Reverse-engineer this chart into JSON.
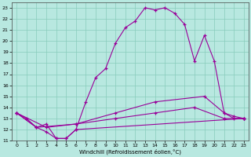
{
  "xlabel": "Windchill (Refroidissement éolien,°C)",
  "xlim": [
    -0.5,
    23.5
  ],
  "ylim": [
    11,
    23.5
  ],
  "xticks": [
    0,
    1,
    2,
    3,
    4,
    5,
    6,
    7,
    8,
    9,
    10,
    11,
    12,
    13,
    14,
    15,
    16,
    17,
    18,
    19,
    20,
    21,
    22,
    23
  ],
  "yticks": [
    11,
    12,
    13,
    14,
    15,
    16,
    17,
    18,
    19,
    20,
    21,
    22,
    23
  ],
  "bg_color": "#b8e8e0",
  "line_color": "#990099",
  "grid_color": "#88ccbb",
  "lines": [
    {
      "x": [
        0,
        1,
        2,
        3,
        4,
        5,
        6,
        7,
        8,
        9,
        10,
        11,
        12,
        13,
        14,
        15,
        16,
        17,
        18,
        19,
        20,
        21,
        22,
        23
      ],
      "y": [
        13.5,
        13.0,
        12.2,
        11.8,
        11.2,
        11.2,
        12.0,
        14.5,
        16.7,
        17.5,
        19.8,
        21.2,
        21.8,
        23.0,
        22.8,
        23.0,
        22.5,
        21.5,
        18.2,
        20.5,
        18.2,
        13.5,
        13.0,
        13.0
      ]
    },
    {
      "x": [
        0,
        2,
        3,
        4,
        5,
        6,
        23
      ],
      "y": [
        13.5,
        12.2,
        12.5,
        11.2,
        11.2,
        12.0,
        13.0
      ]
    },
    {
      "x": [
        0,
        2,
        6,
        10,
        14,
        19,
        21,
        22,
        23
      ],
      "y": [
        13.5,
        12.2,
        12.5,
        13.5,
        14.5,
        15.0,
        13.5,
        13.2,
        13.0
      ]
    },
    {
      "x": [
        0,
        3,
        6,
        10,
        14,
        18,
        21,
        23
      ],
      "y": [
        13.5,
        12.2,
        12.5,
        13.0,
        13.5,
        14.0,
        13.0,
        13.0
      ]
    }
  ]
}
